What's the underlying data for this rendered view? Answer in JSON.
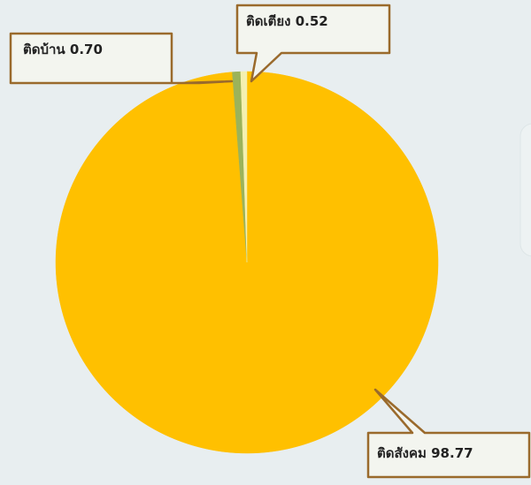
{
  "chart_data": {
    "type": "pie",
    "categories": [
      "ติดสังคม",
      "ติดบ้าน",
      "ติดเตียง"
    ],
    "values": [
      98.77,
      0.7,
      0.52
    ],
    "value_labels": [
      "98.77",
      "0.70",
      "0.52"
    ],
    "colors": [
      "#ffc000",
      "#9bb35a",
      "#f4f0b0"
    ]
  }
}
